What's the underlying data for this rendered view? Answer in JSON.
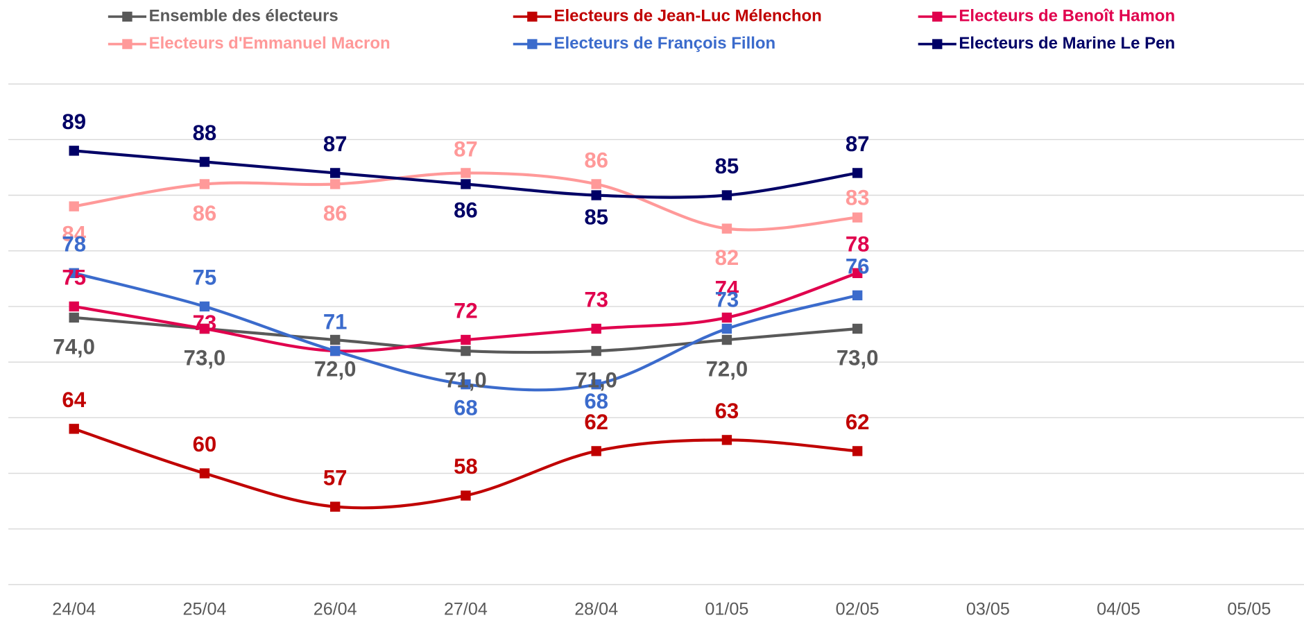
{
  "chart_data": {
    "type": "line",
    "categories": [
      "24/04",
      "25/04",
      "26/04",
      "27/04",
      "28/04",
      "01/05",
      "02/05",
      "03/05",
      "04/05",
      "05/05"
    ],
    "ylim": [
      50,
      95
    ],
    "yticks": [
      50,
      55,
      60,
      65,
      70,
      75,
      80,
      85,
      90,
      95
    ],
    "grid": true,
    "smooth": true,
    "legend": "top",
    "series": [
      {
        "name": "Ensemble des électeurs",
        "color": "#595959",
        "values": [
          74,
          73,
          72,
          71,
          71,
          72,
          73,
          null,
          null,
          null
        ],
        "value_labels": [
          "74,0",
          "73,0",
          "72,0",
          "71,0",
          "71,0",
          "72,0",
          "73,0",
          null,
          null,
          null
        ]
      },
      {
        "name": "Electeurs de Jean-Luc Mélenchon",
        "color": "#c00000",
        "values": [
          64,
          60,
          57,
          58,
          62,
          63,
          62,
          null,
          null,
          null
        ]
      },
      {
        "name": "Electeurs de Benoît Hamon",
        "color": "#e0004d",
        "values": [
          75,
          73,
          71,
          72,
          73,
          74,
          78,
          null,
          null,
          null
        ],
        "value_labels": [
          "75",
          "73",
          null,
          "72",
          "73",
          "74",
          "78",
          null,
          null,
          null
        ]
      },
      {
        "name": "Electeurs d'Emmanuel Macron",
        "color": "#ff9999",
        "values": [
          84,
          86,
          86,
          87,
          86,
          82,
          83,
          null,
          null,
          null
        ]
      },
      {
        "name": "Electeurs de François Fillon",
        "color": "#3b6bcc",
        "values": [
          78,
          75,
          71,
          68,
          68,
          73,
          76,
          null,
          null,
          null
        ]
      },
      {
        "name": "Electeurs de Marine Le Pen",
        "color": "#000066",
        "values": [
          89,
          88,
          87,
          86,
          85,
          85,
          87,
          null,
          null,
          null
        ]
      }
    ]
  }
}
